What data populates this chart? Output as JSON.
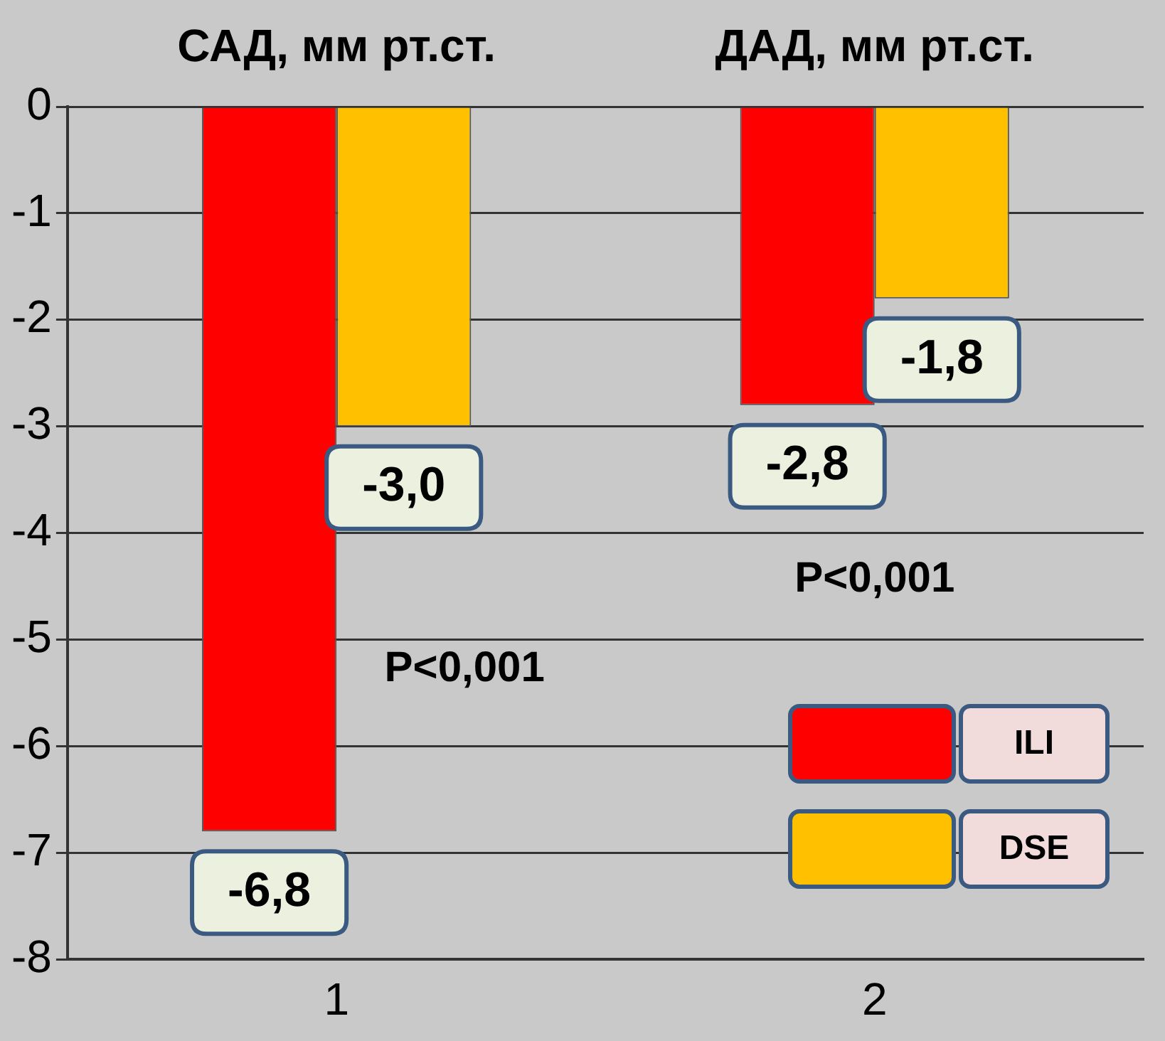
{
  "chart_data": {
    "type": "bar",
    "categories": [
      "1",
      "2"
    ],
    "series": [
      {
        "name": "ILI",
        "color": "#ff0000",
        "values": [
          -6.8,
          -2.8
        ],
        "value_labels": [
          "-6,8",
          "-2,8"
        ]
      },
      {
        "name": "DSE",
        "color": "#ffc000",
        "values": [
          -3.0,
          -1.8
        ],
        "value_labels": [
          "-3,0",
          "-1,8"
        ]
      }
    ],
    "ylim": [
      -8,
      0
    ],
    "yticks": [
      -8,
      -7,
      -6,
      -5,
      -4,
      -3,
      -2,
      -1,
      0
    ],
    "grid": "y",
    "legend": "bottom right",
    "annotations": [
      "САД, мм рт.ст.",
      "ДАД, мм рт.ст.",
      "P<0,001",
      "P<0,001"
    ]
  }
}
